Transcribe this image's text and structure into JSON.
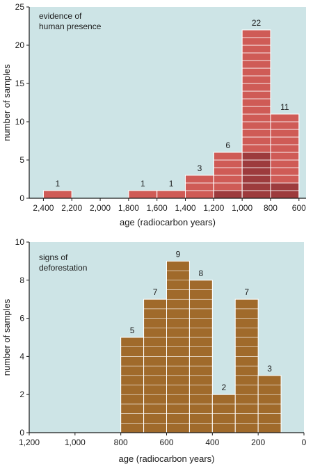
{
  "colors": {
    "plot_bg": "#cde4e6",
    "bar_top": "#cf5b56",
    "bar_bottom": "#9d3b3d",
    "bar_brown": "#a06a2b",
    "bar_line": "#ffffff",
    "text": "#1a1a1a"
  },
  "chart_data": [
    {
      "type": "bar",
      "annotation": "evidence of\nhuman presence",
      "xlabel": "age (radiocarbon years)",
      "ylabel": "number of samples",
      "xlim": [
        2500,
        550
      ],
      "ylim": [
        0,
        25
      ],
      "x_reversed": true,
      "grid": false,
      "xticks": [
        2400,
        2200,
        2000,
        1800,
        1600,
        1400,
        1200,
        1000,
        800,
        600
      ],
      "xtick_labels": [
        "2,400",
        "2,200",
        "2,000",
        "1,800",
        "1,600",
        "1,400",
        "1,200",
        "1,000",
        "800",
        "600"
      ],
      "yticks": [
        0,
        5,
        10,
        15,
        20,
        25
      ],
      "ytick_labels": [
        "0",
        "5",
        "10",
        "15",
        "20",
        "25"
      ],
      "bin_width": 200,
      "bars": [
        {
          "x_start": 2400,
          "x_end": 2200,
          "value": 1,
          "label": "1",
          "dark_count": 0
        },
        {
          "x_start": 1800,
          "x_end": 1600,
          "value": 1,
          "label": "1",
          "dark_count": 0
        },
        {
          "x_start": 1600,
          "x_end": 1400,
          "value": 1,
          "label": "1",
          "dark_count": 0
        },
        {
          "x_start": 1400,
          "x_end": 1200,
          "value": 3,
          "label": "3",
          "dark_count": 0
        },
        {
          "x_start": 1200,
          "x_end": 1000,
          "value": 6,
          "label": "6",
          "dark_count": 1
        },
        {
          "x_start": 1000,
          "x_end": 800,
          "value": 22,
          "label": "22",
          "dark_count": 6
        },
        {
          "x_start": 800,
          "x_end": 600,
          "value": 11,
          "label": "11",
          "dark_count": 2
        }
      ]
    },
    {
      "type": "bar",
      "annotation": "signs of\ndeforestation",
      "xlabel": "age (radiocarbon years)",
      "ylabel": "number of samples",
      "xlim": [
        1200,
        0
      ],
      "ylim": [
        0,
        10
      ],
      "x_reversed": true,
      "grid": false,
      "xticks": [
        1200,
        1000,
        800,
        600,
        400,
        200,
        0
      ],
      "xtick_labels": [
        "1,200",
        "1,000",
        "800",
        "600",
        "400",
        "200",
        "0"
      ],
      "yticks": [
        0,
        2,
        4,
        6,
        8,
        10
      ],
      "ytick_labels": [
        "0",
        "2",
        "4",
        "6",
        "8",
        "10"
      ],
      "bin_width": 100,
      "bars": [
        {
          "x_start": 800,
          "x_end": 700,
          "value": 5,
          "label": "5"
        },
        {
          "x_start": 700,
          "x_end": 600,
          "value": 7,
          "label": "7"
        },
        {
          "x_start": 600,
          "x_end": 500,
          "value": 9,
          "label": "9"
        },
        {
          "x_start": 500,
          "x_end": 400,
          "value": 8,
          "label": "8"
        },
        {
          "x_start": 400,
          "x_end": 300,
          "value": 2,
          "label": "2"
        },
        {
          "x_start": 300,
          "x_end": 200,
          "value": 7,
          "label": "7"
        },
        {
          "x_start": 200,
          "x_end": 100,
          "value": 3,
          "label": "3"
        }
      ]
    }
  ]
}
